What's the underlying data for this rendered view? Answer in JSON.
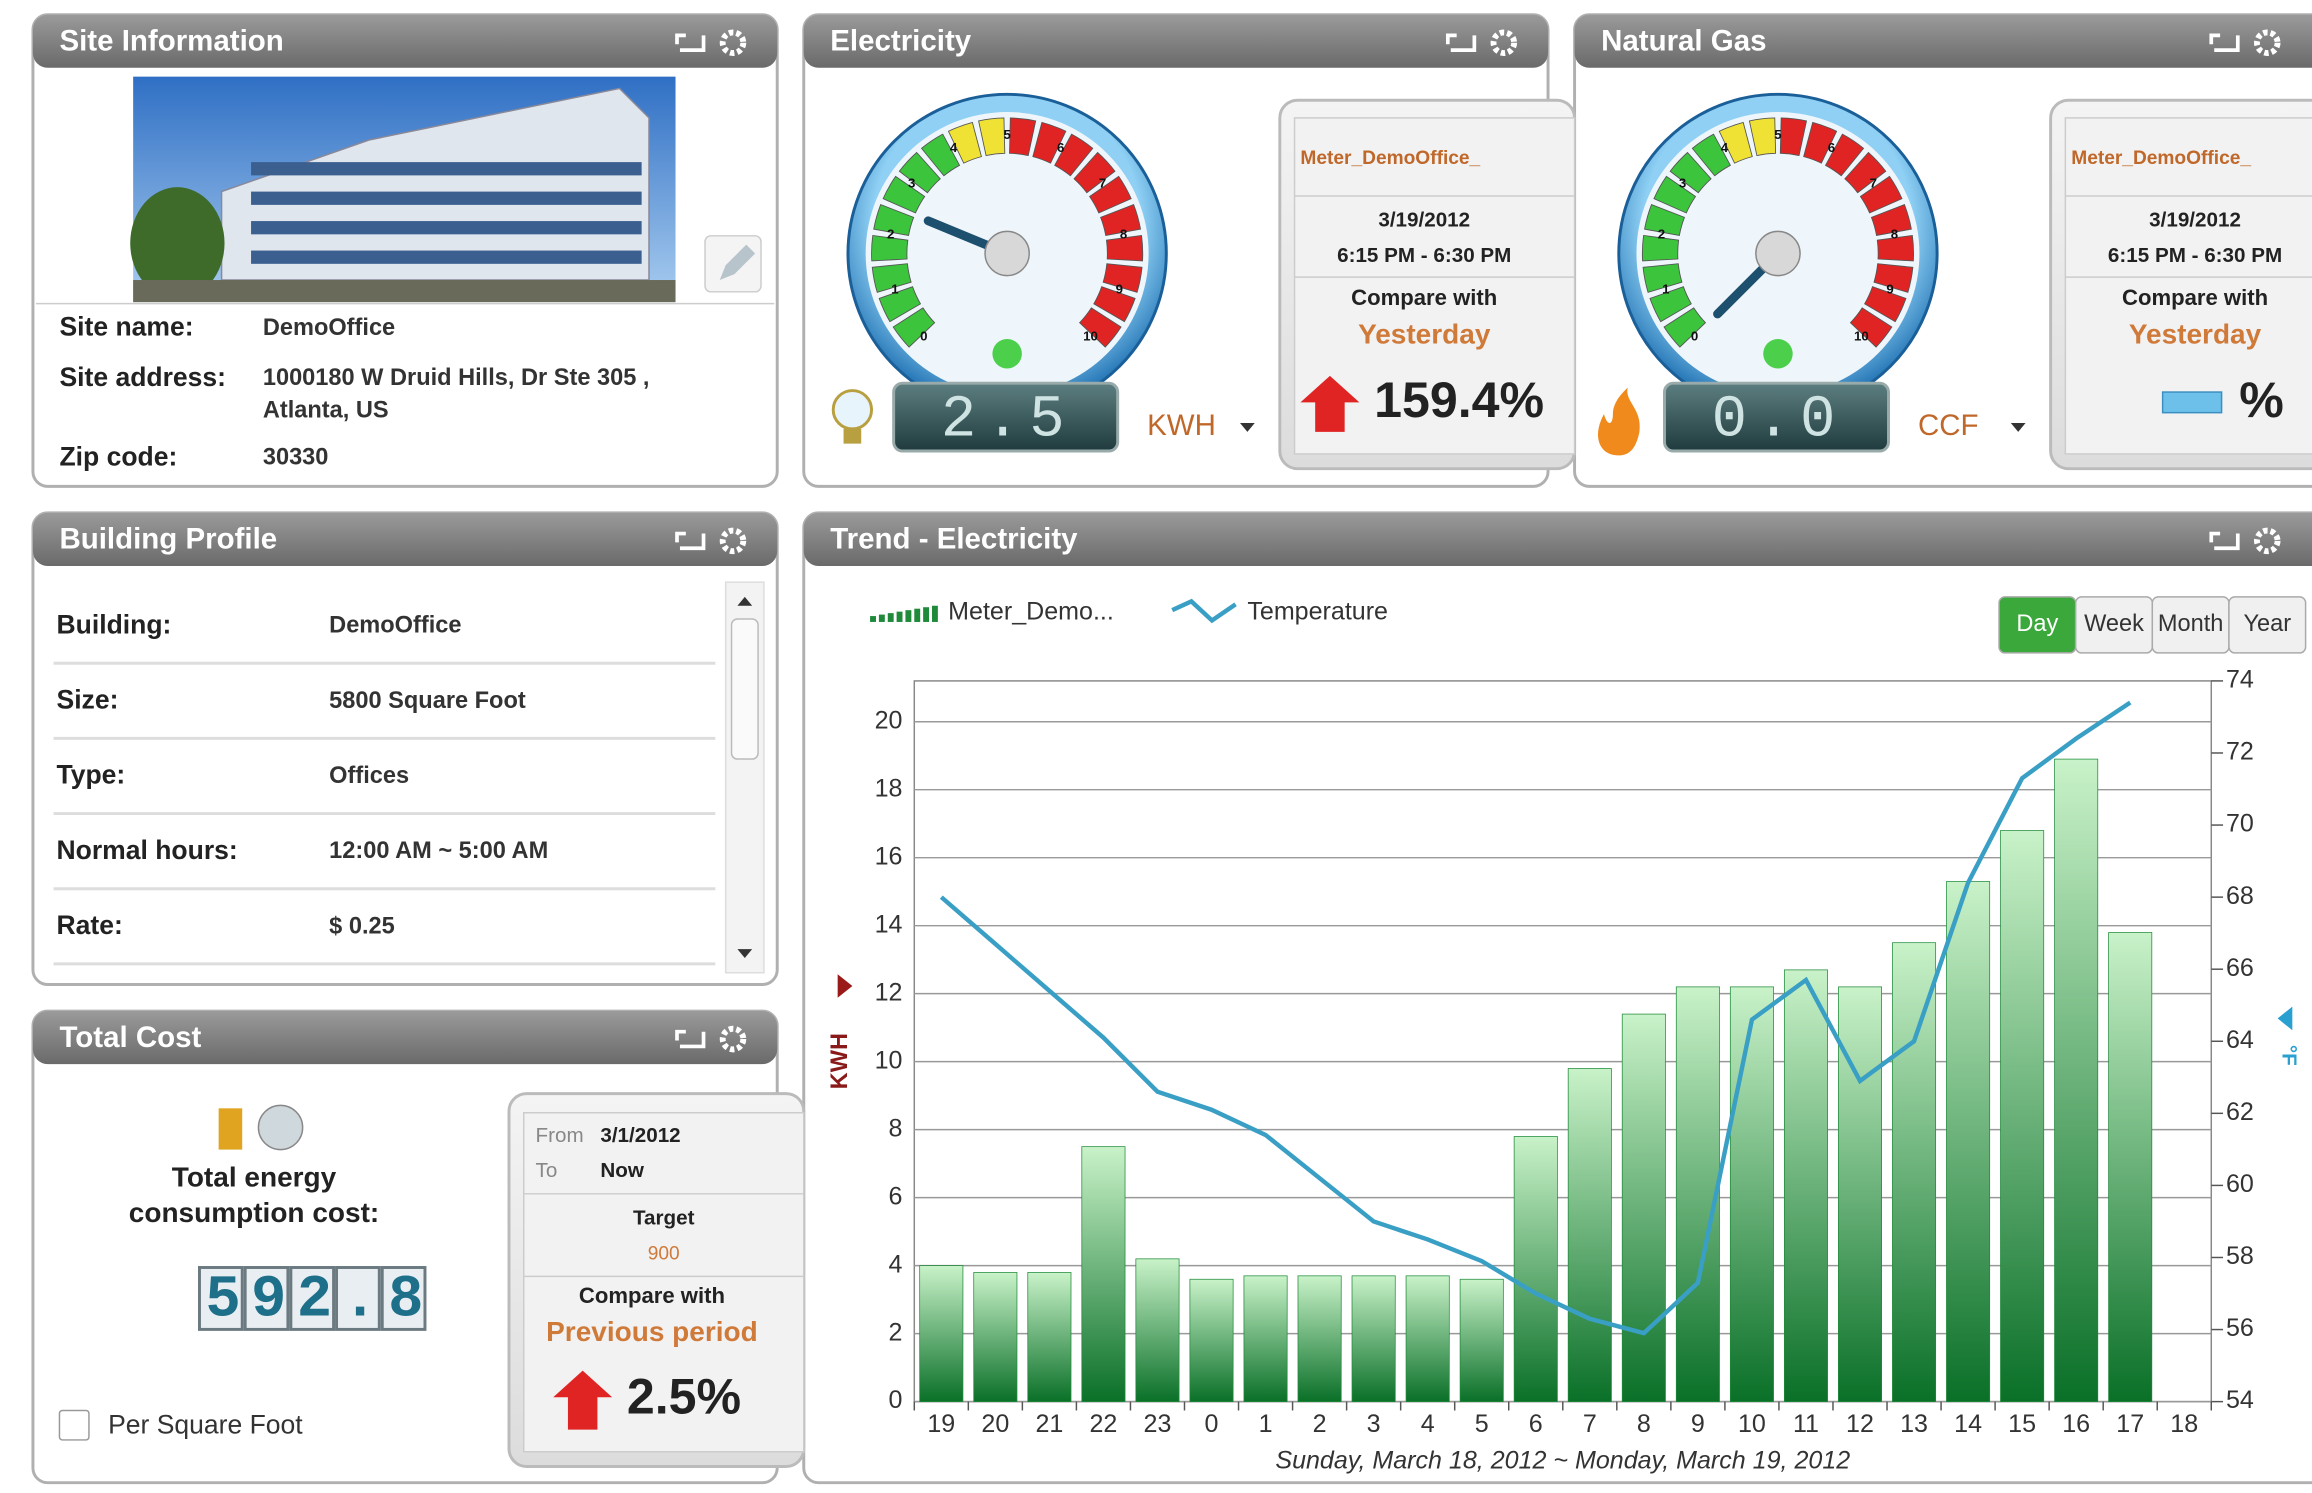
{
  "site_information": {
    "title": "Site Information",
    "rows": [
      {
        "label": "Site name:",
        "value": [
          "DemoOffice"
        ]
      },
      {
        "label": "Site address:",
        "value": [
          "1000180 W Druid Hills, Dr Ste 305 ,",
          "Atlanta, US"
        ]
      },
      {
        "label": "Zip code:",
        "value": [
          "30330"
        ]
      }
    ]
  },
  "electricity": {
    "title": "Electricity",
    "gauge_scale": [
      0,
      1,
      2,
      3,
      4,
      5,
      6,
      7,
      8,
      9,
      10
    ],
    "reading": 2.5,
    "unit": "KWH",
    "meter": "Meter_DemoOffice_",
    "date": "3/19/2012",
    "time": "6:15 PM - 6:30 PM",
    "compare_label": "Compare with",
    "compare_with": "Yesterday",
    "change": {
      "value": 159.4,
      "label": "159.4%"
    }
  },
  "natural_gas": {
    "title": "Natural Gas",
    "gauge_scale": [
      0,
      1,
      2,
      3,
      4,
      5,
      6,
      7,
      8,
      9,
      10
    ],
    "reading": {
      "value": 0,
      "label": "0.0"
    },
    "unit": "CCF",
    "meter": "Meter_DemoOffice_",
    "date": "3/19/2012",
    "time": "6:15 PM - 6:30 PM",
    "compare_label": "Compare with",
    "compare_with": "Yesterday",
    "change_label": "%"
  },
  "building_profile": {
    "title": "Building Profile",
    "rows": [
      [
        "Building:",
        "DemoOffice"
      ],
      [
        "Size:",
        "5800  Square Foot"
      ],
      [
        "Type:",
        "Offices"
      ],
      [
        "Normal hours:",
        "12:00 AM  ~  5:00 AM"
      ],
      [
        "Rate:",
        "$ 0.25"
      ]
    ]
  },
  "total_cost": {
    "title": "Total Cost",
    "label": [
      "Total energy",
      "consumption cost:"
    ],
    "cost": 592.8,
    "from_label": "From",
    "from": "3/1/2012",
    "to_label": "To",
    "to": "Now",
    "target_label": "Target",
    "target": 900,
    "compare_label": "Compare with",
    "compare_with": "Previous period",
    "change": {
      "value": 2.5,
      "label": "2.5%"
    },
    "per_square_foot": "Per Square Foot"
  },
  "chart_data": {
    "type": "bar",
    "title": "Trend - Electricity",
    "categories": [
      "19",
      "20",
      "21",
      "22",
      "23",
      "0",
      "1",
      "2",
      "3",
      "4",
      "5",
      "6",
      "7",
      "8",
      "9",
      "10",
      "11",
      "12",
      "13",
      "14",
      "15",
      "16",
      "17",
      "18"
    ],
    "series": [
      {
        "name": "Meter_Demo...",
        "type": "bar",
        "color": "#1f8a3a",
        "values": [
          4.0,
          3.8,
          3.8,
          7.5,
          4.2,
          3.6,
          3.7,
          3.7,
          3.7,
          3.7,
          3.6,
          7.8,
          9.8,
          11.4,
          12.2,
          12.2,
          12.7,
          12.2,
          13.5,
          15.3,
          16.8,
          18.9,
          13.8,
          null
        ]
      },
      {
        "name": "Temperature",
        "type": "line",
        "axis": "y2",
        "color": "#3a9fc4",
        "values": [
          68.0,
          66.7,
          65.4,
          64.1,
          62.6,
          62.1,
          61.4,
          60.2,
          59.0,
          58.5,
          57.9,
          57.0,
          56.3,
          55.9,
          57.3,
          64.6,
          65.7,
          62.9,
          64.0,
          68.4,
          71.3,
          72.4,
          73.4,
          null
        ]
      }
    ],
    "ylim": [
      0,
      21.2
    ],
    "yticks": [
      0,
      2,
      4,
      6,
      8,
      10,
      12,
      14,
      16,
      18,
      20
    ],
    "y2lim": [
      54,
      74
    ],
    "y2ticks": [
      54,
      56,
      58,
      60,
      62,
      64,
      66,
      68,
      70,
      72,
      74
    ],
    "ylabel": "KWH",
    "y2label": "°F",
    "xlabel": "Sunday, March 18, 2012 ~ Monday, March 19, 2012",
    "grid": true,
    "range_buttons": [
      "Day",
      "Week",
      "Month",
      "Year"
    ],
    "active_range": "Day"
  }
}
